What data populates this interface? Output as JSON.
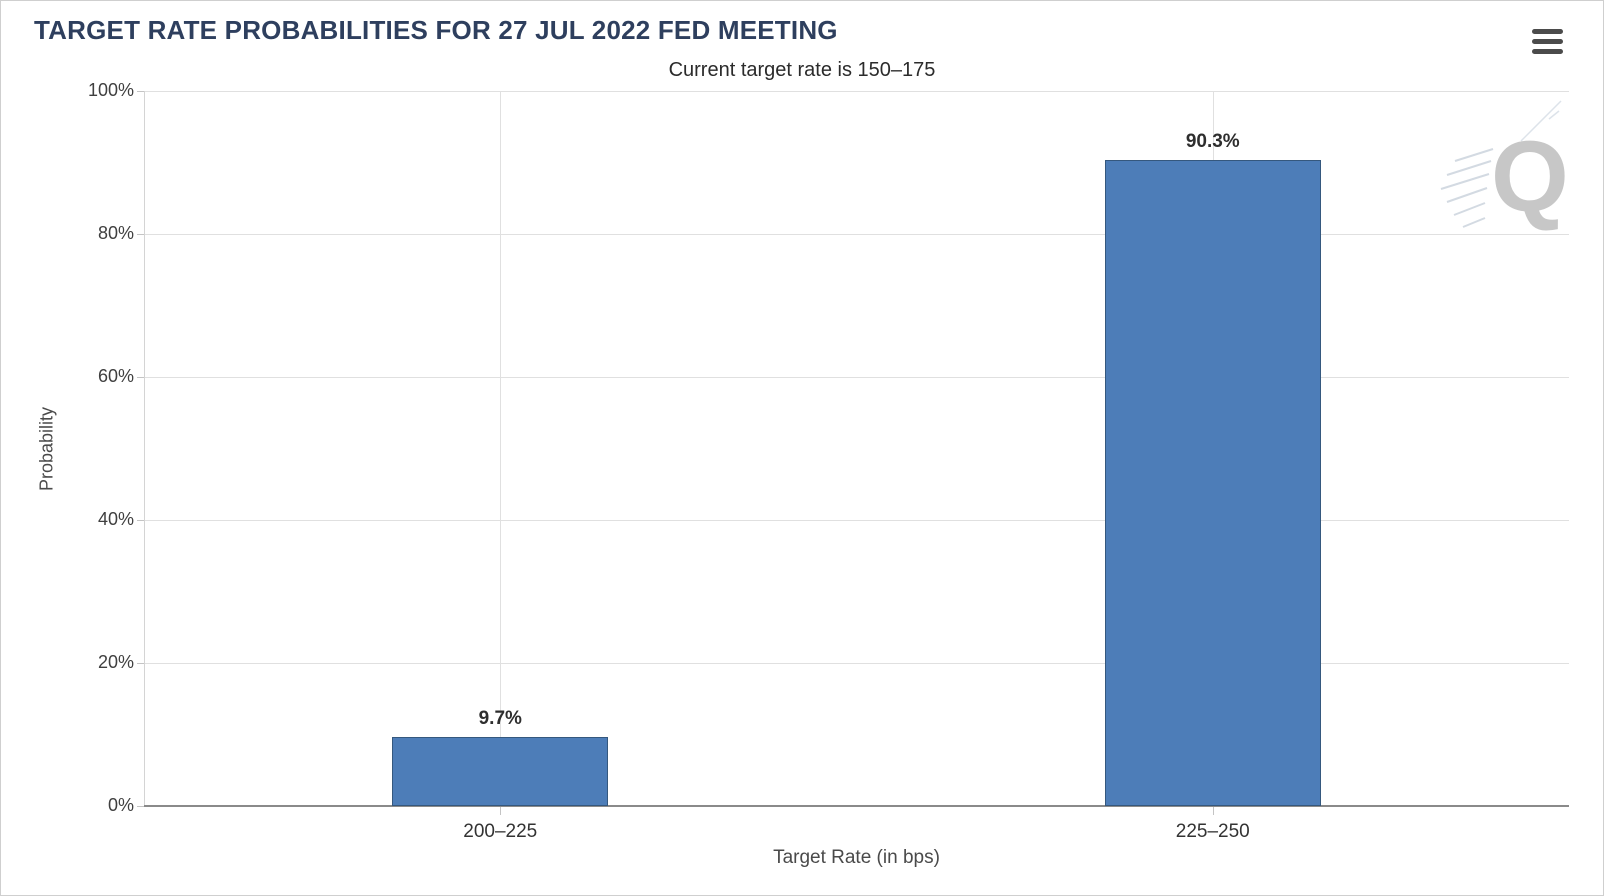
{
  "header": {
    "title": "TARGET RATE PROBABILITIES FOR 27 JUL 2022 FED MEETING",
    "menu_icon": "hamburger-menu-icon"
  },
  "chart_data": {
    "type": "bar",
    "title": "TARGET RATE PROBABILITIES FOR 27 JUL 2022 FED MEETING",
    "subtitle": "Current target rate is 150–175",
    "categories": [
      "200–225",
      "225–250"
    ],
    "values": [
      9.7,
      90.3
    ],
    "value_labels": [
      "9.7%",
      "90.3%"
    ],
    "xlabel": "Target Rate (in bps)",
    "ylabel": "Probability",
    "ylim": [
      0,
      100
    ],
    "yticks": [
      0,
      20,
      40,
      60,
      80,
      100
    ],
    "ytick_labels": [
      "0%",
      "20%",
      "40%",
      "60%",
      "80%",
      "100%"
    ],
    "grid": true,
    "legend_position": "none",
    "watermark_letter": "Q"
  },
  "colors": {
    "title_text": "#2e3f5e",
    "subtitle_text": "#2b2b2b",
    "bar_fill": "#4d7db8",
    "bar_border": "#35587e",
    "gridline": "#e0e0e0",
    "axis_line": "#8a8a8a",
    "tick_label": "#3f3f3f",
    "axis_title": "#4a4a4a",
    "watermark": "#c7c7c7",
    "menu_icon": "#4b4b4b"
  }
}
